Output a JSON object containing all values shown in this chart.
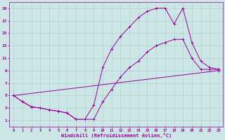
{
  "background_color": "#cce6e6",
  "grid_color": "#aacccc",
  "line_color": "#990099",
  "xlabel": "Windchill (Refroidissement éolien,°C)",
  "xlim": [
    -0.5,
    23.5
  ],
  "ylim": [
    0,
    20
  ],
  "xticks": [
    0,
    1,
    2,
    3,
    4,
    5,
    6,
    7,
    8,
    9,
    10,
    11,
    12,
    13,
    14,
    15,
    16,
    17,
    18,
    19,
    20,
    21,
    22,
    23
  ],
  "yticks": [
    1,
    3,
    5,
    7,
    9,
    11,
    13,
    15,
    17,
    19
  ],
  "line1_x": [
    0,
    1,
    2,
    3,
    4,
    5,
    6,
    7,
    8,
    9,
    10,
    11,
    12,
    13,
    14,
    15,
    16,
    17,
    18,
    19,
    20,
    21,
    22,
    23
  ],
  "line1_y": [
    5,
    4,
    3.2,
    3,
    2.7,
    2.5,
    2.2,
    1.2,
    1.2,
    3.5,
    9.5,
    12.5,
    14.5,
    16,
    17.5,
    18.5,
    19,
    19,
    16.5,
    19,
    13.5,
    10.5,
    9.5,
    9.2
  ],
  "line2_x": [
    0,
    1,
    2,
    3,
    4,
    5,
    6,
    7,
    8,
    9,
    10,
    11,
    12,
    13,
    14,
    15,
    16,
    17,
    18,
    19,
    20,
    21,
    22,
    23
  ],
  "line2_y": [
    5,
    4,
    3.2,
    3,
    2.7,
    2.5,
    2.2,
    1.2,
    1.2,
    1.2,
    4,
    6,
    8,
    9.5,
    10.5,
    12,
    13,
    13.5,
    14,
    14,
    11,
    9.2,
    9.2,
    9.2
  ],
  "line3_x": [
    0,
    23
  ],
  "line3_y": [
    5,
    9
  ]
}
